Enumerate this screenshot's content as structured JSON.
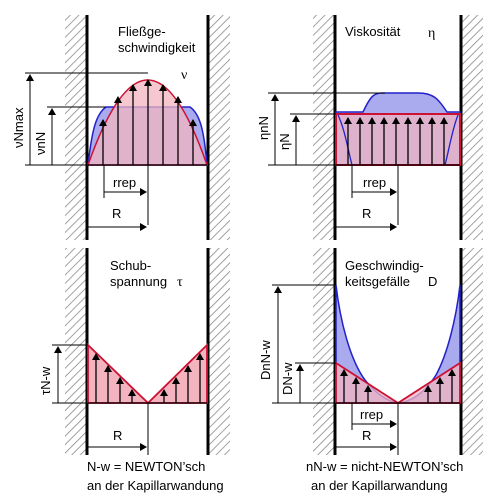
{
  "colors": {
    "nn_fill": "#aaaaee",
    "nn_stroke": "#2222cc",
    "newton_fill": "#f3b4bf",
    "newton_stroke": "#cc1133",
    "overlap_fill": "#c8a0d2",
    "hatch": "#8a8a8a",
    "wall": "#000000"
  },
  "panels": {
    "velocity": {
      "title_line1": "Fließge-",
      "title_line2": "schwindigkeit",
      "symbol": "ν",
      "dim_max": "νNmax",
      "dim_nn": "νnN",
      "rrep": "rrep",
      "R": "R"
    },
    "viscosity": {
      "title": "Viskosität",
      "symbol": "η",
      "dim_nn": "ηnN",
      "dim_n": "ηN",
      "rrep": "rrep",
      "R": "R"
    },
    "shear": {
      "title_line1": "Schub-",
      "title_line2": "spannung",
      "symbol": "τ",
      "dim": "τN-w",
      "R": "R"
    },
    "gradient": {
      "title_line1": "Geschwindig-",
      "title_line2": "keitsgefälle",
      "symbol": "D",
      "dim_nn": "DnN-w",
      "dim_n": "DN-w",
      "rrep": "rrep",
      "R": "R"
    }
  },
  "footnotes": {
    "left_line1": "N-w = NEWTON’sch",
    "left_line2": "an der Kapillarwandung",
    "right_line1": "nN-w = nicht-NEWTON’sch",
    "right_line2": "an der Kapillarwandung"
  }
}
